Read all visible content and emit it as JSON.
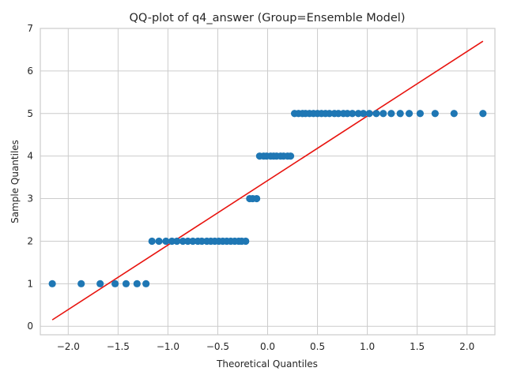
{
  "chart_data": {
    "type": "scatter",
    "title": "QQ-plot of q4_answer (Group=Ensemble Model)",
    "xlabel": "Theoretical Quantiles",
    "ylabel": "Sample Quantiles",
    "xlim": [
      -2.28,
      2.28
    ],
    "ylim": [
      -0.2,
      7.0
    ],
    "xticks": [
      -2.0,
      -1.5,
      -1.0,
      -0.5,
      0.0,
      0.5,
      1.0,
      1.5,
      2.0
    ],
    "xtick_labels": [
      "−2.0",
      "−1.5",
      "−1.0",
      "−0.5",
      "0.0",
      "0.5",
      "1.0",
      "1.5",
      "2.0"
    ],
    "yticks": [
      0,
      1,
      2,
      3,
      4,
      5,
      6,
      7
    ],
    "ytick_labels": [
      "0",
      "1",
      "2",
      "3",
      "4",
      "5",
      "6",
      "7"
    ],
    "grid": true,
    "colors": {
      "points": "#1f77b4",
      "line": "#e8140f",
      "grid": "#cccccc"
    },
    "series": [
      {
        "kind": "points",
        "x": [
          -2.16,
          -1.87,
          -1.68,
          -1.53,
          -1.42,
          -1.31,
          -1.22,
          -1.16,
          -1.09,
          -1.02,
          -0.96,
          -0.91,
          -0.85,
          -0.8,
          -0.75,
          -0.7,
          -0.66,
          -0.61,
          -0.57,
          -0.53,
          -0.49,
          -0.45,
          -0.41,
          -0.37,
          -0.33,
          -0.29,
          -0.26,
          -0.22,
          -0.18,
          -0.15,
          -0.11,
          -0.08,
          -0.04,
          -0.01,
          0.03,
          0.06,
          0.09,
          0.13,
          0.16,
          0.2,
          0.23,
          0.27,
          0.31,
          0.35,
          0.38,
          0.42,
          0.46,
          0.5,
          0.54,
          0.58,
          0.62,
          0.67,
          0.71,
          0.76,
          0.8,
          0.85,
          0.91,
          0.96,
          1.02,
          1.09,
          1.16,
          1.24,
          1.33,
          1.42,
          1.53,
          1.68,
          1.87,
          2.16
        ],
        "y": [
          1,
          1,
          1,
          1,
          1,
          1,
          1,
          2,
          2,
          2,
          2,
          2,
          2,
          2,
          2,
          2,
          2,
          2,
          2,
          2,
          2,
          2,
          2,
          2,
          2,
          2,
          2,
          2,
          3,
          3,
          3,
          4,
          4,
          4,
          4,
          4,
          4,
          4,
          4,
          4,
          4,
          5,
          5,
          5,
          5,
          5,
          5,
          5,
          5,
          5,
          5,
          5,
          5,
          5,
          5,
          5,
          5,
          5,
          5,
          5,
          5,
          5,
          5,
          5,
          5,
          5,
          5,
          5
        ]
      },
      {
        "kind": "line",
        "x": [
          -2.16,
          2.16
        ],
        "y": [
          0.15,
          6.7
        ]
      }
    ]
  }
}
